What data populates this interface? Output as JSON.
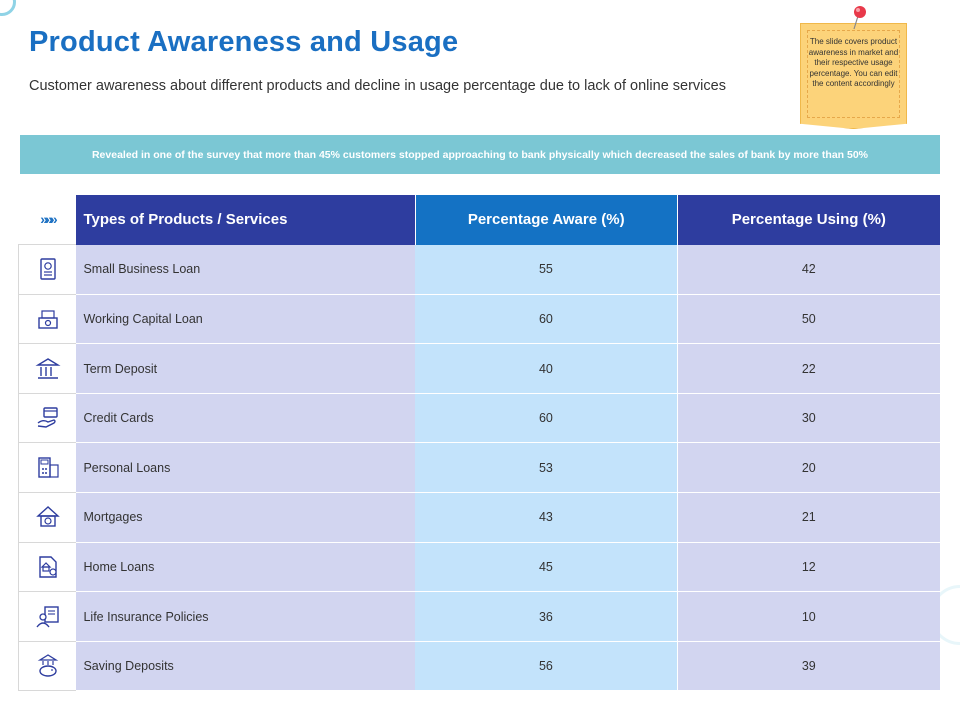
{
  "title": "Product Awareness and Usage",
  "subtitle": "Customer awareness about different products and decline in usage percentage due to lack of online services",
  "note": "The slide covers product awareness in market and their respective usage percentage. You can edit the content accordingly",
  "banner": "Revealed in one of the survey that more than 45% customers stopped approaching to bank physically which decreased the sales of bank by more than 50%",
  "table": {
    "headers": {
      "icon": "»»»",
      "name": "Types of Products / Services",
      "aware": "Percentage Aware (%)",
      "using": "Percentage Using (%)"
    },
    "rows": [
      {
        "icon": "receipt-icon",
        "name": "Small Business Loan",
        "aware": "55",
        "using": "42"
      },
      {
        "icon": "money-stack-icon",
        "name": "Working Capital Loan",
        "aware": "60",
        "using": "50"
      },
      {
        "icon": "bank-icon",
        "name": "Term Deposit",
        "aware": "40",
        "using": "22"
      },
      {
        "icon": "hand-card-icon",
        "name": "Credit Cards",
        "aware": "60",
        "using": "30"
      },
      {
        "icon": "calculator-icon",
        "name": "Personal Loans",
        "aware": "53",
        "using": "20"
      },
      {
        "icon": "house-coin-icon",
        "name": "Mortgages",
        "aware": "43",
        "using": "21"
      },
      {
        "icon": "document-house-icon",
        "name": "Home Loans",
        "aware": "45",
        "using": "12"
      },
      {
        "icon": "insurance-person-icon",
        "name": "Life Insurance Policies",
        "aware": "36",
        "using": "10"
      },
      {
        "icon": "piggy-bank-icon",
        "name": "Saving Deposits",
        "aware": "56",
        "using": "39"
      }
    ]
  },
  "colors": {
    "title": "#1a6fc2",
    "banner": "#7bc7d4",
    "header_dark": "#2e3d9f",
    "header_mid": "#1472c4",
    "cell_lavender": "#d2d5f0",
    "cell_blue": "#c3e3fb",
    "note": "#fcd37a"
  }
}
